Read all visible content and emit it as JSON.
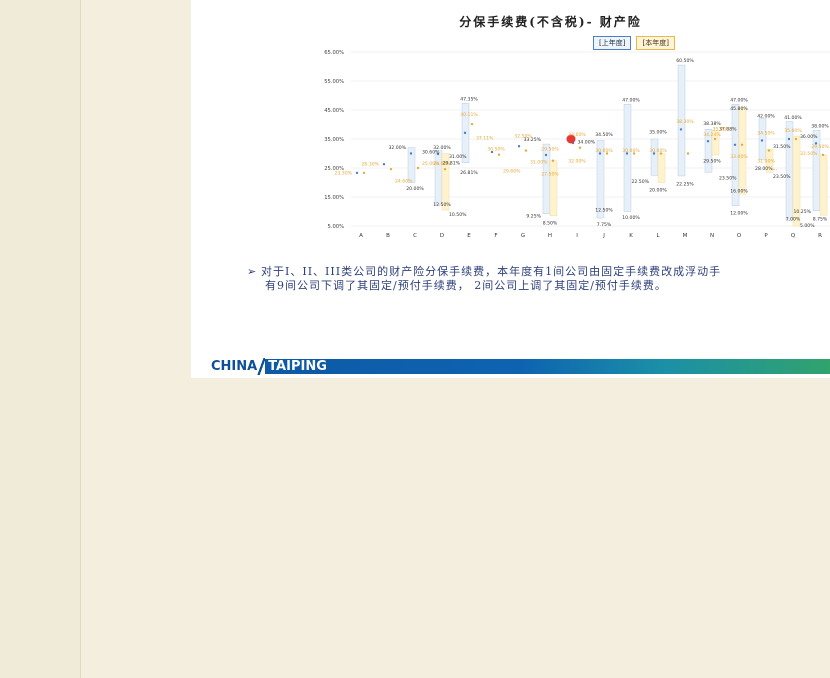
{
  "title": "分保手续费(不含税)- 财产险",
  "legend": {
    "prev": "[上年度]",
    "curr": "[本年度]"
  },
  "note": {
    "line1": "对于I、II、III类公司的财产险分保手续费，本年度有1间公司由固定手续费改成浮动手",
    "line2": "有9间公司下调了其固定/预付手续费， 2间公司上调了其固定/预付手续费。"
  },
  "footer": {
    "brand_left": "CHINA",
    "brand_right": "TAIPING"
  },
  "chart_data": {
    "type": "range-bar",
    "title": "分保手续费(不含税)- 财产险",
    "y_ticks": [
      "65.00%",
      "55.00%",
      "45.00%",
      "35.00%",
      "25.00%",
      "15.00%",
      "5.00%"
    ],
    "ylim": [
      5,
      65
    ],
    "categories": [
      "A",
      "B",
      "C",
      "D",
      "E",
      "F",
      "G",
      "H",
      "I",
      "J",
      "K",
      "L",
      "M",
      "N",
      "O",
      "P",
      "Q",
      "R"
    ],
    "series": [
      {
        "name": "[上年度]",
        "color": "#4a7fc1",
        "ranges": [
          null,
          null,
          [
            20,
            32
          ],
          [
            12.5,
            31
          ],
          [
            26.81,
            47.35
          ],
          null,
          null,
          [
            9.25,
            33.25
          ],
          null,
          [
            7.75,
            34.5
          ],
          [
            10,
            47
          ],
          [
            22.5,
            35
          ],
          [
            22.25,
            60.5
          ],
          [
            23.5,
            38.38
          ],
          [
            12,
            47
          ],
          [
            28,
            42
          ],
          [
            7,
            41
          ],
          [
            10.25,
            38
          ]
        ],
        "points": [
          23.3,
          26.3,
          30.0,
          29.81,
          37.11,
          30.5,
          32.5,
          29.5,
          33.6,
          30.0,
          30.0,
          30.0,
          38.3,
          34.24,
          33.0,
          34.5,
          35.0,
          33.5
        ]
      },
      {
        "name": "[本年度]",
        "color": "#e8a93a",
        "ranges": [
          null,
          null,
          null,
          [
            10.5,
            30
          ],
          null,
          null,
          null,
          [
            8.5,
            27.5
          ],
          null,
          null,
          null,
          [
            20,
            30
          ],
          null,
          [
            29.5,
            37.88
          ],
          [
            16,
            45.8
          ],
          [
            23.5,
            31.5
          ],
          [
            5,
            36
          ],
          [
            8.75,
            29.5
          ]
        ],
        "points": [
          23.3,
          24.6,
          25.0,
          24.6,
          40.11,
          29.6,
          31.0,
          27.5,
          32.0,
          30.0,
          30.0,
          30.0,
          30.0,
          35.0,
          33.0,
          31.0,
          35.0,
          29.5
        ]
      }
    ],
    "data_labels": [
      {
        "cat": "A",
        "value": "23.30%",
        "color": "#e8a93a",
        "v": 23.3,
        "side": "l"
      },
      {
        "cat": "B",
        "value": "26.30%",
        "color": "#e8a93a",
        "v": 26.3,
        "side": "l"
      },
      {
        "cat": "B",
        "value": "24.60%",
        "color": "#e8a93a",
        "v": 20.5,
        "side": "r"
      },
      {
        "cat": "C",
        "value": "32.00%",
        "color": "#333333",
        "v": 32.0,
        "side": "l"
      },
      {
        "cat": "C",
        "value": "30.60%",
        "color": "#333333",
        "v": 30.6,
        "side": "r"
      },
      {
        "cat": "C",
        "value": "25.00%",
        "color": "#e8a93a",
        "v": 26.5,
        "side": "r"
      },
      {
        "cat": "C",
        "value": "20.00%",
        "color": "#333333",
        "v": 18.0,
        "side": "c"
      },
      {
        "cat": "D",
        "value": "32.00%",
        "color": "#333333",
        "v": 32.0,
        "side": "c"
      },
      {
        "cat": "D",
        "value": "31.00%",
        "color": "#333333",
        "v": 29.0,
        "side": "r"
      },
      {
        "cat": "D",
        "value": "24.60%",
        "color": "#e8a93a",
        "v": 26.5,
        "side": "c"
      },
      {
        "cat": "D",
        "value": "12.50%",
        "color": "#333333",
        "v": 12.5,
        "side": "c"
      },
      {
        "cat": "D",
        "value": "10.50%",
        "color": "#333333",
        "v": 9.0,
        "side": "r"
      },
      {
        "cat": "E",
        "value": "47.35%",
        "color": "#333333",
        "v": 48.8,
        "side": "c"
      },
      {
        "cat": "E",
        "value": "40.11%",
        "color": "#e8a93a",
        "v": 43.5,
        "side": "c"
      },
      {
        "cat": "E",
        "value": "37.11%",
        "color": "#e8a93a",
        "v": 35.3,
        "side": "r"
      },
      {
        "cat": "E",
        "value": "29.81%",
        "color": "#333333",
        "v": 26.8,
        "side": "l"
      },
      {
        "cat": "E",
        "value": "26.81%",
        "color": "#333333",
        "v": 23.5,
        "side": "c"
      },
      {
        "cat": "F",
        "value": "30.50%",
        "color": "#e8a93a",
        "v": 31.5,
        "side": "c"
      },
      {
        "cat": "F",
        "value": "29.60%",
        "color": "#e8a93a",
        "v": 24.0,
        "side": "r"
      },
      {
        "cat": "G",
        "value": "32.50%",
        "color": "#e8a93a",
        "v": 36.0,
        "side": "c"
      },
      {
        "cat": "G",
        "value": "31.00%",
        "color": "#e8a93a",
        "v": 27.0,
        "side": "r"
      },
      {
        "cat": "H",
        "value": "33.25%",
        "color": "#333333",
        "v": 34.8,
        "side": "l"
      },
      {
        "cat": "H",
        "value": "29.50%",
        "color": "#e8a93a",
        "v": 31.5,
        "side": "c"
      },
      {
        "cat": "H",
        "value": "27.50%",
        "color": "#e8a93a",
        "v": 23.0,
        "side": "c"
      },
      {
        "cat": "H",
        "value": "9.25%",
        "color": "#333333",
        "v": 8.5,
        "side": "l"
      },
      {
        "cat": "H",
        "value": "8.50%",
        "color": "#333333",
        "v": 6.0,
        "side": "c"
      },
      {
        "cat": "I",
        "value": "33.60%",
        "color": "#e8a93a",
        "v": 36.5,
        "side": "c"
      },
      {
        "cat": "I",
        "value": "32.00%",
        "color": "#e8a93a",
        "v": 27.5,
        "side": "c"
      },
      {
        "cat": "J",
        "value": "34.50%",
        "color": "#333333",
        "v": 36.5,
        "side": "c"
      },
      {
        "cat": "J",
        "value": "34.00%",
        "color": "#333333",
        "v": 34.0,
        "side": "l"
      },
      {
        "cat": "J",
        "value": "30.00%",
        "color": "#e8a93a",
        "v": 31.0,
        "side": "c"
      },
      {
        "cat": "J",
        "value": "12.50%",
        "color": "#333333",
        "v": 10.5,
        "side": "c"
      },
      {
        "cat": "J",
        "value": "7.75%",
        "color": "#333333",
        "v": 5.5,
        "side": "c"
      },
      {
        "cat": "K",
        "value": "47.00%",
        "color": "#333333",
        "v": 48.5,
        "side": "c"
      },
      {
        "cat": "K",
        "value": "30.00%",
        "color": "#e8a93a",
        "v": 31.0,
        "side": "c"
      },
      {
        "cat": "K",
        "value": "10.00%",
        "color": "#333333",
        "v": 8.0,
        "side": "c"
      },
      {
        "cat": "L",
        "value": "35.00%",
        "color": "#333333",
        "v": 37.5,
        "side": "c"
      },
      {
        "cat": "L",
        "value": "30.00%",
        "color": "#e8a93a",
        "v": 31.0,
        "side": "c"
      },
      {
        "cat": "L",
        "value": "22.50%",
        "color": "#333333",
        "v": 20.3,
        "side": "l"
      },
      {
        "cat": "L",
        "value": "20.00%",
        "color": "#333333",
        "v": 17.5,
        "side": "c"
      },
      {
        "cat": "M",
        "value": "60.50%",
        "color": "#333333",
        "v": 62.0,
        "side": "c"
      },
      {
        "cat": "M",
        "value": "38.30%",
        "color": "#e8a93a",
        "v": 41.0,
        "side": "c"
      },
      {
        "cat": "M",
        "value": "22.25%",
        "color": "#333333",
        "v": 19.5,
        "side": "c"
      },
      {
        "cat": "N",
        "value": "38.38%",
        "color": "#333333",
        "v": 40.3,
        "side": "c"
      },
      {
        "cat": "N",
        "value": "37.88%",
        "color": "#333333",
        "v": 38.5,
        "side": "r"
      },
      {
        "cat": "N",
        "value": "34.24%",
        "color": "#e8a93a",
        "v": 36.5,
        "side": "c"
      },
      {
        "cat": "N",
        "value": "29.50%",
        "color": "#333333",
        "v": 27.5,
        "side": "c"
      },
      {
        "cat": "N",
        "value": "23.50%",
        "color": "#333333",
        "v": 21.5,
        "side": "r"
      },
      {
        "cat": "O",
        "value": "47.00%",
        "color": "#333333",
        "v": 48.5,
        "side": "c"
      },
      {
        "cat": "O",
        "value": "45.80%",
        "color": "#333333",
        "v": 45.5,
        "side": "c"
      },
      {
        "cat": "O",
        "value": "35.00%",
        "color": "#e8a93a",
        "v": 38.5,
        "side": "l"
      },
      {
        "cat": "O",
        "value": "33.00%",
        "color": "#e8a93a",
        "v": 29.0,
        "side": "c"
      },
      {
        "cat": "O",
        "value": "16.00%",
        "color": "#333333",
        "v": 17.0,
        "side": "c"
      },
      {
        "cat": "O",
        "value": "12.00%",
        "color": "#333333",
        "v": 9.5,
        "side": "c"
      },
      {
        "cat": "P",
        "value": "42.00%",
        "color": "#333333",
        "v": 43.0,
        "side": "c"
      },
      {
        "cat": "P",
        "value": "34.50%",
        "color": "#e8a93a",
        "v": 37.0,
        "side": "c"
      },
      {
        "cat": "P",
        "value": "31.50%",
        "color": "#333333",
        "v": 32.5,
        "side": "r"
      },
      {
        "cat": "P",
        "value": "31.00%",
        "color": "#e8a93a",
        "v": 27.5,
        "side": "c"
      },
      {
        "cat": "P",
        "value": "28.00%...",
        "color": "#333333",
        "v": 24.8,
        "side": "c"
      },
      {
        "cat": "P",
        "value": "23.50%",
        "color": "#333333",
        "v": 22.0,
        "side": "r"
      },
      {
        "cat": "Q",
        "value": "41.00%",
        "color": "#333333",
        "v": 42.5,
        "side": "c"
      },
      {
        "cat": "Q",
        "value": "36.00%",
        "color": "#333333",
        "v": 35.8,
        "side": "r"
      },
      {
        "cat": "Q",
        "value": "35.00%",
        "color": "#e8a93a",
        "v": 38.0,
        "side": "c"
      },
      {
        "cat": "Q",
        "value": "33.50%",
        "color": "#e8a93a",
        "v": 30.0,
        "side": "r"
      },
      {
        "cat": "Q",
        "value": "7.00%",
        "color": "#333333",
        "v": 7.5,
        "side": "c"
      },
      {
        "cat": "Q",
        "value": "5.00%",
        "color": "#333333",
        "v": 5.2,
        "side": "r"
      },
      {
        "cat": "R",
        "value": "38.00%",
        "color": "#333333",
        "v": 39.5,
        "side": "c"
      },
      {
        "cat": "R",
        "value": "29.50%",
        "color": "#e8a93a",
        "v": 32.5,
        "side": "c"
      },
      {
        "cat": "R",
        "value": "10.25%",
        "color": "#333333",
        "v": 10.0,
        "side": "l"
      },
      {
        "cat": "R",
        "value": "8.75%",
        "color": "#333333",
        "v": 7.5,
        "side": "c"
      }
    ],
    "highlight": {
      "cat": "I",
      "value": 35.0,
      "color": "#e53935"
    }
  }
}
